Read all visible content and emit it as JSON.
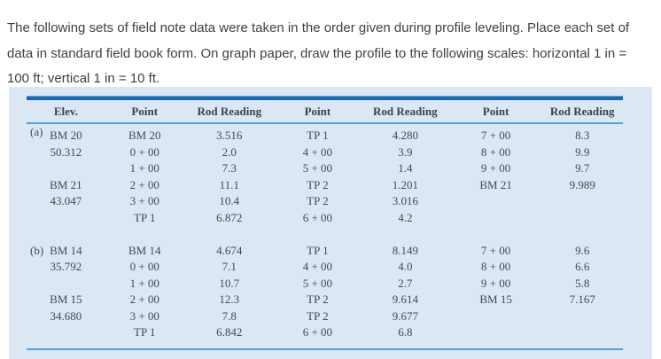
{
  "problem": {
    "text": "The following sets of field note data were taken in the order given during profile leveling. Place each set of data in standard field book form. On graph paper, draw the profile to the following scales: horizontal 1 in = 100 ft; vertical 1 in = 10 ft."
  },
  "table": {
    "columns": [
      "Elev.",
      "Point",
      "Rod Reading",
      "Point",
      "Rod Reading",
      "Point",
      "Rod Reading"
    ],
    "sections": [
      {
        "label": "(a)",
        "rows": [
          [
            "BM 20",
            "BM 20",
            "3.516",
            "TP 1",
            "4.280",
            "7 + 00",
            "8.3"
          ],
          [
            "50.312",
            "0 + 00",
            "2.0",
            "4 + 00",
            "3.9",
            "8 + 00",
            "9.9"
          ],
          [
            "",
            "1 + 00",
            "7.3",
            "5 + 00",
            "1.4",
            "9 + 00",
            "9.7"
          ],
          [
            "BM 21",
            "2 + 00",
            "11.1",
            "TP 2",
            "1.201",
            "BM 21",
            "9.989"
          ],
          [
            "43.047",
            "3 + 00",
            "10.4",
            "TP 2",
            "3.016",
            "",
            ""
          ],
          [
            "",
            "TP 1",
            "6.872",
            "6 + 00",
            "4.2",
            "",
            ""
          ]
        ]
      },
      {
        "label": "(b)",
        "rows": [
          [
            "BM 14",
            "BM 14",
            "4.674",
            "TP 1",
            "8.149",
            "7 + 00",
            "9.6"
          ],
          [
            "35.792",
            "0 + 00",
            "7.1",
            "4 + 00",
            "4.0",
            "8 + 00",
            "6.6"
          ],
          [
            "",
            "1 + 00",
            "10.7",
            "5 + 00",
            "2.7",
            "9 + 00",
            "5.8"
          ],
          [
            "BM 15",
            "2 + 00",
            "12.3",
            "TP 2",
            "9.614",
            "BM 15",
            "7.167"
          ],
          [
            "34.680",
            "3 + 00",
            "7.8",
            "TP 2",
            "9.677",
            "",
            ""
          ],
          [
            "",
            "TP 1",
            "6.842",
            "6 + 00",
            "6.8",
            "",
            ""
          ]
        ]
      }
    ],
    "colors": {
      "panel_background": "#dbe7f3",
      "thick_rule": "#1e68ab",
      "thin_rule": "#55a0d4",
      "table_text": "#3f4c57"
    }
  }
}
